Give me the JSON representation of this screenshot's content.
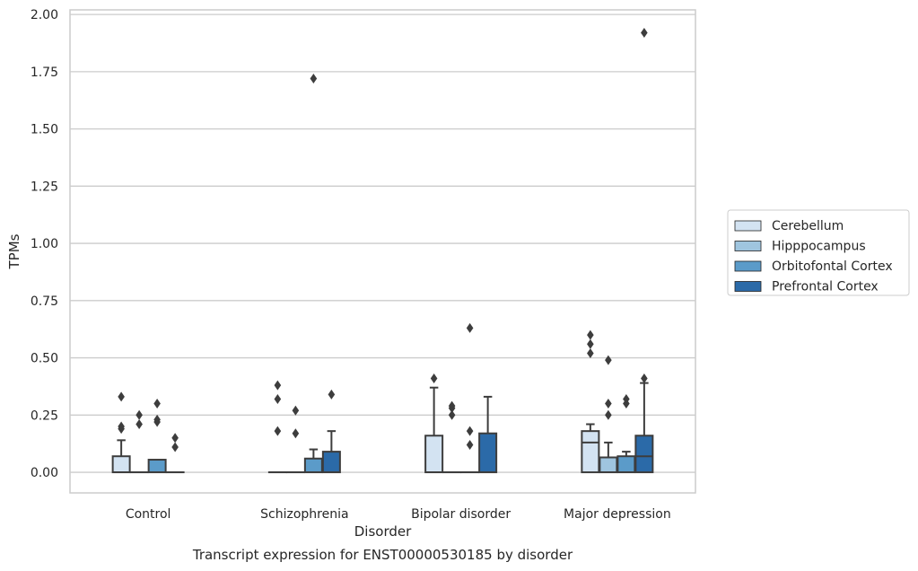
{
  "chart_data": {
    "type": "box",
    "caption": "Transcript expression for ENST00000530185 by disorder",
    "xlabel": "Disorder",
    "ylabel": "TPMs",
    "ylim": [
      -0.09,
      2.02
    ],
    "yticks": [
      0.0,
      0.25,
      0.5,
      0.75,
      1.0,
      1.25,
      1.5,
      1.75,
      2.0
    ],
    "ytick_labels": [
      "0.00",
      "0.25",
      "0.50",
      "0.75",
      "1.00",
      "1.25",
      "1.50",
      "1.75",
      "2.00"
    ],
    "grid": "horizontal",
    "legend_position": "right",
    "categories": [
      "Control",
      "Schizophrenia",
      "Bipolar disorder",
      "Major depression"
    ],
    "series": [
      {
        "name": "Cerebellum",
        "color": "#d3e3f2",
        "boxes": [
          {
            "q1": 0.0,
            "median": 0.0,
            "q3": 0.07,
            "whisker_low": 0.0,
            "whisker_high": 0.14,
            "outliers": [
              0.19,
              0.2,
              0.33
            ]
          },
          {
            "q1": 0.0,
            "median": 0.0,
            "q3": 0.0,
            "whisker_low": 0.0,
            "whisker_high": 0.0,
            "outliers": [
              0.18,
              0.32,
              0.38
            ]
          },
          {
            "q1": 0.0,
            "median": 0.0,
            "q3": 0.16,
            "whisker_low": 0.0,
            "whisker_high": 0.37,
            "outliers": [
              0.41
            ]
          },
          {
            "q1": 0.0,
            "median": 0.13,
            "q3": 0.18,
            "whisker_low": 0.0,
            "whisker_high": 0.21,
            "outliers": [
              0.52,
              0.56,
              0.6
            ]
          }
        ]
      },
      {
        "name": "Hipppocampus",
        "color": "#9fc5df",
        "boxes": [
          {
            "q1": 0.0,
            "median": 0.0,
            "q3": 0.0,
            "whisker_low": 0.0,
            "whisker_high": 0.0,
            "outliers": [
              0.21,
              0.25
            ]
          },
          {
            "q1": 0.0,
            "median": 0.0,
            "q3": 0.0,
            "whisker_low": 0.0,
            "whisker_high": 0.0,
            "outliers": [
              0.17,
              0.27
            ]
          },
          {
            "q1": 0.0,
            "median": 0.0,
            "q3": 0.0,
            "whisker_low": 0.0,
            "whisker_high": 0.0,
            "outliers": [
              0.25,
              0.28,
              0.29
            ]
          },
          {
            "q1": 0.0,
            "median": 0.0,
            "q3": 0.065,
            "whisker_low": 0.0,
            "whisker_high": 0.13,
            "outliers": [
              0.25,
              0.3,
              0.49
            ]
          }
        ]
      },
      {
        "name": "Orbitofontal Cortex",
        "color": "#5b9bc9",
        "boxes": [
          {
            "q1": 0.0,
            "median": 0.0,
            "q3": 0.055,
            "whisker_low": 0.0,
            "whisker_high": 0.055,
            "outliers": [
              0.22,
              0.23,
              0.3
            ]
          },
          {
            "q1": 0.0,
            "median": 0.0,
            "q3": 0.06,
            "whisker_low": 0.0,
            "whisker_high": 0.1,
            "outliers": [
              1.72
            ]
          },
          {
            "q1": 0.0,
            "median": 0.0,
            "q3": 0.0,
            "whisker_low": 0.0,
            "whisker_high": 0.0,
            "outliers": [
              0.12,
              0.18,
              0.63
            ]
          },
          {
            "q1": 0.0,
            "median": 0.0,
            "q3": 0.07,
            "whisker_low": 0.0,
            "whisker_high": 0.09,
            "outliers": [
              0.3,
              0.32
            ]
          }
        ]
      },
      {
        "name": "Prefrontal Cortex",
        "color": "#2b6aa8",
        "boxes": [
          {
            "q1": 0.0,
            "median": 0.0,
            "q3": 0.0,
            "whisker_low": 0.0,
            "whisker_high": 0.0,
            "outliers": [
              0.11,
              0.15
            ]
          },
          {
            "q1": 0.0,
            "median": 0.0,
            "q3": 0.09,
            "whisker_low": 0.0,
            "whisker_high": 0.18,
            "outliers": [
              0.34
            ]
          },
          {
            "q1": 0.0,
            "median": 0.0,
            "q3": 0.17,
            "whisker_low": 0.0,
            "whisker_high": 0.33,
            "outliers": []
          },
          {
            "q1": 0.0,
            "median": 0.07,
            "q3": 0.16,
            "whisker_low": 0.0,
            "whisker_high": 0.39,
            "outliers": [
              0.41,
              1.92
            ]
          }
        ]
      }
    ]
  }
}
